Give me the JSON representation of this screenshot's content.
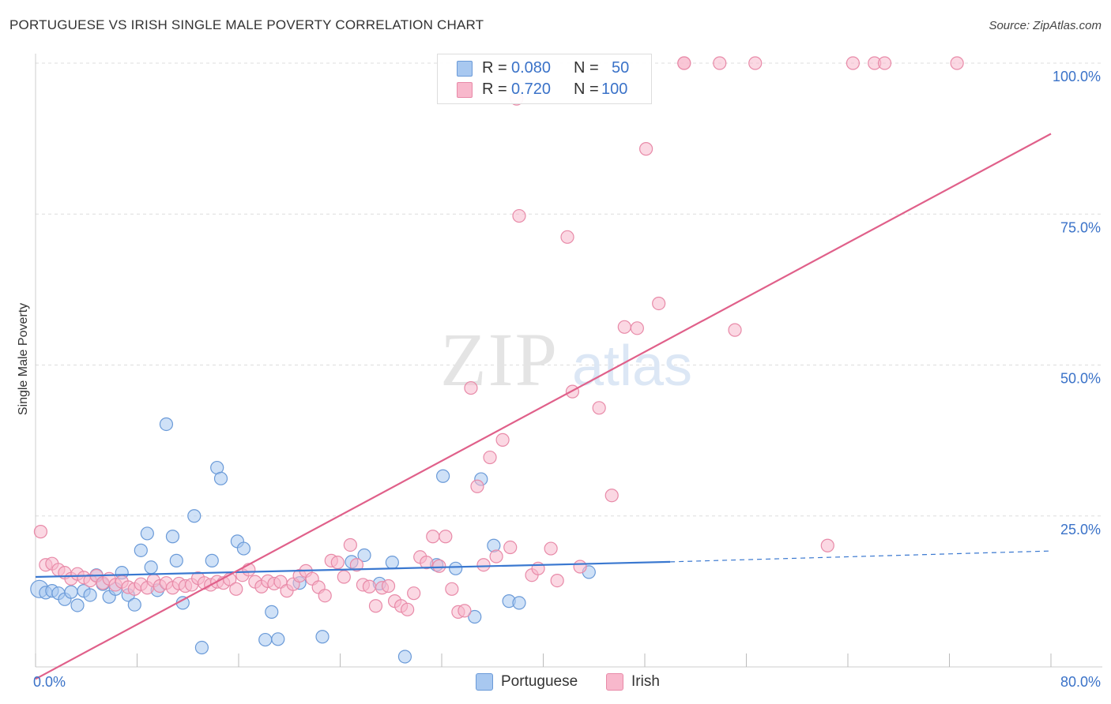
{
  "header": {
    "title": "PORTUGUESE VS IRISH SINGLE MALE POVERTY CORRELATION CHART",
    "source": "Source: ZipAtlas.com"
  },
  "stats": {
    "portuguese": {
      "r_label": "R =",
      "r_value": "0.080",
      "n_label": "N =",
      "n_value": "50"
    },
    "irish": {
      "r_label": "R =",
      "r_value": "0.720",
      "n_label": "N =",
      "n_value": "100"
    }
  },
  "legend": {
    "portuguese": "Portuguese",
    "irish": "Irish"
  },
  "colors": {
    "portuguese_fill": "#a8c8f0",
    "portuguese_stroke": "#6a9ad8",
    "portuguese_line": "#3a78d0",
    "irish_fill": "#f8b8cc",
    "irish_stroke": "#e88aa8",
    "irish_line": "#e0608a",
    "tick_label": "#3a72c8",
    "grid": "#dddddd"
  },
  "watermark": {
    "zip": "ZIP",
    "atlas": "atlas"
  },
  "chart_data": {
    "type": "scatter",
    "title": "PORTUGUESE VS IRISH SINGLE MALE POVERTY CORRELATION CHART",
    "xlabel": "",
    "ylabel": "Single Male Poverty",
    "xlim": [
      0,
      80
    ],
    "ylim": [
      0,
      100
    ],
    "x_tick_labels": {
      "0": "0.0%",
      "80": "80.0%"
    },
    "y_tick_labels": [
      "25.0%",
      "50.0%",
      "75.0%",
      "100.0%"
    ],
    "y_ticks": [
      25,
      50,
      75,
      100
    ],
    "x_minor_ticks": [
      0,
      8,
      16,
      24,
      32,
      40,
      48,
      56,
      64,
      72,
      80
    ],
    "grid": true,
    "legend_position": "bottom-center",
    "series": [
      {
        "name": "Portuguese",
        "points": [
          [
            0.3,
            12.9
          ],
          [
            0.8,
            12.3
          ],
          [
            1.3,
            12.6
          ],
          [
            1.8,
            12.2
          ],
          [
            2.3,
            11.2
          ],
          [
            2.8,
            12.4
          ],
          [
            3.3,
            10.2
          ],
          [
            3.8,
            12.6
          ],
          [
            4.3,
            11.9
          ],
          [
            4.8,
            15.2
          ],
          [
            5.3,
            13.7
          ],
          [
            5.8,
            11.6
          ],
          [
            6.3,
            12.9
          ],
          [
            6.8,
            15.6
          ],
          [
            7.3,
            11.9
          ],
          [
            7.8,
            10.3
          ],
          [
            8.3,
            19.3
          ],
          [
            8.8,
            22.1
          ],
          [
            9.1,
            16.5
          ],
          [
            9.6,
            12.7
          ],
          [
            10.3,
            40.2
          ],
          [
            10.8,
            21.6
          ],
          [
            11.1,
            17.6
          ],
          [
            11.6,
            10.6
          ],
          [
            12.5,
            25.0
          ],
          [
            13.1,
            3.2
          ],
          [
            13.9,
            17.6
          ],
          [
            14.3,
            33.0
          ],
          [
            14.6,
            31.2
          ],
          [
            15.9,
            20.8
          ],
          [
            16.4,
            19.6
          ],
          [
            18.1,
            4.5
          ],
          [
            18.6,
            9.1
          ],
          [
            19.1,
            4.6
          ],
          [
            20.8,
            13.9
          ],
          [
            22.6,
            5.0
          ],
          [
            24.9,
            17.4
          ],
          [
            25.9,
            18.5
          ],
          [
            27.1,
            13.8
          ],
          [
            28.1,
            17.3
          ],
          [
            29.1,
            1.7
          ],
          [
            31.6,
            16.9
          ],
          [
            32.1,
            31.6
          ],
          [
            33.1,
            16.3
          ],
          [
            34.6,
            8.3
          ],
          [
            35.1,
            31.1
          ],
          [
            36.1,
            20.1
          ],
          [
            37.3,
            10.9
          ],
          [
            38.1,
            10.6
          ],
          [
            43.6,
            15.7
          ]
        ]
      },
      {
        "name": "Irish",
        "points": [
          [
            0.4,
            22.4
          ],
          [
            0.8,
            16.9
          ],
          [
            1.3,
            17.1
          ],
          [
            1.8,
            16.1
          ],
          [
            2.3,
            15.6
          ],
          [
            2.8,
            14.6
          ],
          [
            3.3,
            15.4
          ],
          [
            3.8,
            14.8
          ],
          [
            4.3,
            14.3
          ],
          [
            4.8,
            15.1
          ],
          [
            5.3,
            13.9
          ],
          [
            5.8,
            14.6
          ],
          [
            6.3,
            13.6
          ],
          [
            6.8,
            14.1
          ],
          [
            7.3,
            13.2
          ],
          [
            7.8,
            12.9
          ],
          [
            8.3,
            13.7
          ],
          [
            8.8,
            13.1
          ],
          [
            9.3,
            14.3
          ],
          [
            9.8,
            13.4
          ],
          [
            10.3,
            13.9
          ],
          [
            10.8,
            13.1
          ],
          [
            11.3,
            13.8
          ],
          [
            11.8,
            13.4
          ],
          [
            12.3,
            13.6
          ],
          [
            12.8,
            14.7
          ],
          [
            13.3,
            13.9
          ],
          [
            13.8,
            13.6
          ],
          [
            14.3,
            14.1
          ],
          [
            14.8,
            13.9
          ],
          [
            15.3,
            14.5
          ],
          [
            15.8,
            12.9
          ],
          [
            16.3,
            15.2
          ],
          [
            16.8,
            16.1
          ],
          [
            17.3,
            14.1
          ],
          [
            17.8,
            13.3
          ],
          [
            18.3,
            14.2
          ],
          [
            18.8,
            13.8
          ],
          [
            19.3,
            14.1
          ],
          [
            19.8,
            12.6
          ],
          [
            20.3,
            13.7
          ],
          [
            20.8,
            15.1
          ],
          [
            21.3,
            15.9
          ],
          [
            21.8,
            14.6
          ],
          [
            22.3,
            13.2
          ],
          [
            22.8,
            11.8
          ],
          [
            23.3,
            17.6
          ],
          [
            23.8,
            17.3
          ],
          [
            24.3,
            14.9
          ],
          [
            24.8,
            20.2
          ],
          [
            25.3,
            16.9
          ],
          [
            25.8,
            13.6
          ],
          [
            26.3,
            13.3
          ],
          [
            26.8,
            10.1
          ],
          [
            27.3,
            13.1
          ],
          [
            27.8,
            13.4
          ],
          [
            28.3,
            10.9
          ],
          [
            28.8,
            10.1
          ],
          [
            29.3,
            9.5
          ],
          [
            29.8,
            12.2
          ],
          [
            30.3,
            18.2
          ],
          [
            30.8,
            17.3
          ],
          [
            31.3,
            21.6
          ],
          [
            31.8,
            16.7
          ],
          [
            32.3,
            21.6
          ],
          [
            32.8,
            12.9
          ],
          [
            33.3,
            9.1
          ],
          [
            33.8,
            9.3
          ],
          [
            34.3,
            46.2
          ],
          [
            34.8,
            29.9
          ],
          [
            35.3,
            16.9
          ],
          [
            35.8,
            34.7
          ],
          [
            36.3,
            18.3
          ],
          [
            36.8,
            37.6
          ],
          [
            37.4,
            19.8
          ],
          [
            37.9,
            94.1
          ],
          [
            38.1,
            74.7
          ],
          [
            39.1,
            15.2
          ],
          [
            39.6,
            16.3
          ],
          [
            40.6,
            19.6
          ],
          [
            41.1,
            14.3
          ],
          [
            41.9,
            71.2
          ],
          [
            42.3,
            45.6
          ],
          [
            42.9,
            16.6
          ],
          [
            44.4,
            42.9
          ],
          [
            45.4,
            28.4
          ],
          [
            46.4,
            56.3
          ],
          [
            47.4,
            56.1
          ],
          [
            48.1,
            85.8
          ],
          [
            49.1,
            60.2
          ],
          [
            51.1,
            100
          ],
          [
            53.9,
            100
          ],
          [
            55.1,
            55.8
          ],
          [
            56.7,
            100
          ],
          [
            62.4,
            20.1
          ],
          [
            64.4,
            100
          ],
          [
            66.1,
            100
          ],
          [
            66.9,
            100
          ],
          [
            72.6,
            100
          ],
          [
            51.1,
            100
          ]
        ]
      }
    ],
    "trend_lines": [
      {
        "name": "Portuguese",
        "x": [
          0,
          50
        ],
        "y": [
          14.9,
          17.4
        ],
        "dashed_extension_to": [
          80,
          19.2
        ]
      },
      {
        "name": "Irish",
        "x": [
          0,
          80
        ],
        "y": [
          -2.0,
          88.3
        ]
      }
    ],
    "annotations": [
      {
        "series": "Portuguese",
        "R": 0.08,
        "N": 50
      },
      {
        "series": "Irish",
        "R": 0.72,
        "N": 100
      }
    ]
  }
}
